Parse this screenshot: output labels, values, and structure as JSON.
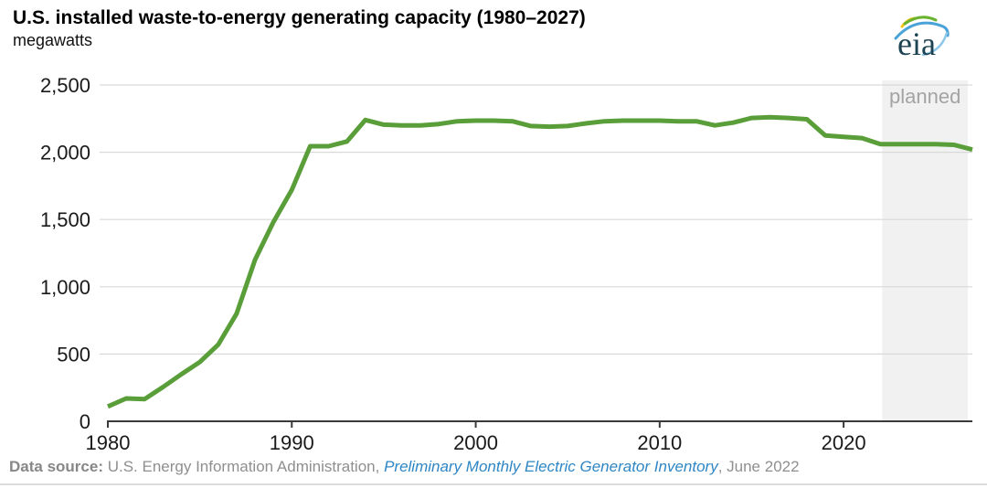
{
  "page": {
    "title": "U.S. installed waste-to-energy generating capacity (1980–2027)",
    "subtitle": "megawatts"
  },
  "logo": {
    "text": "eia"
  },
  "chart_data": {
    "type": "line",
    "title": "U.S. installed waste-to-energy generating capacity (1980–2027)",
    "unit_label": "megawatts",
    "xlabel": "",
    "ylabel": "megawatts",
    "xlim": [
      1980,
      2027
    ],
    "ylim": [
      0,
      2500
    ],
    "grid": "horizontal",
    "legend": "none",
    "x": [
      1980,
      1981,
      1982,
      1983,
      1984,
      1985,
      1986,
      1987,
      1988,
      1989,
      1990,
      1991,
      1992,
      1993,
      1994,
      1995,
      1996,
      1997,
      1998,
      1999,
      2000,
      2001,
      2002,
      2003,
      2004,
      2005,
      2006,
      2007,
      2008,
      2009,
      2010,
      2011,
      2012,
      2013,
      2014,
      2015,
      2016,
      2017,
      2018,
      2019,
      2020,
      2021,
      2022,
      2023,
      2024,
      2025,
      2026,
      2027
    ],
    "values": [
      110,
      170,
      165,
      255,
      350,
      440,
      570,
      800,
      1200,
      1480,
      1720,
      2045,
      2045,
      2080,
      2240,
      2205,
      2200,
      2200,
      2210,
      2230,
      2235,
      2235,
      2230,
      2195,
      2190,
      2195,
      2215,
      2230,
      2235,
      2235,
      2235,
      2230,
      2230,
      2200,
      2220,
      2255,
      2260,
      2255,
      2245,
      2125,
      2115,
      2105,
      2060,
      2060,
      2060,
      2060,
      2055,
      2020
    ],
    "y_ticks": [
      {
        "value": 0,
        "label": "0"
      },
      {
        "value": 500,
        "label": "500"
      },
      {
        "value": 1000,
        "label": "1,000"
      },
      {
        "value": 1500,
        "label": "1,500"
      },
      {
        "value": 2000,
        "label": "2,000"
      },
      {
        "value": 2500,
        "label": "2,500"
      }
    ],
    "x_ticks": [
      {
        "value": 1980,
        "label": "1980"
      },
      {
        "value": 1990,
        "label": "1990"
      },
      {
        "value": 2000,
        "label": "2000"
      },
      {
        "value": 2010,
        "label": "2010"
      },
      {
        "value": 2020,
        "label": "2020"
      }
    ],
    "annotations": {
      "planned_region": {
        "label": "planned",
        "start_year": 2022.1,
        "end_year": 2026.75
      }
    }
  },
  "footer": {
    "parts": [
      {
        "text": "Data source: "
      },
      {
        "text": "U.S. Energy Information Administration, "
      },
      {
        "text": "Preliminary Monthly Electric Generator Inventory"
      },
      {
        "text": ", June 2022"
      }
    ]
  },
  "colors": {
    "line_green": "#5a9e3a",
    "grid": "#d9d9d9",
    "axis": "#3a3a3a",
    "tick_label": "#1a1a1a",
    "planned_fill": "#f1f1f1",
    "planned_text": "#a3a3a3",
    "footer_text": "#8f8f8f",
    "link_blue": "#2e86c4",
    "logo_text": "#1d4353",
    "logo_yellow": "#f2c313",
    "logo_green": "#69b32f",
    "logo_blue": "#4aa3d8"
  }
}
